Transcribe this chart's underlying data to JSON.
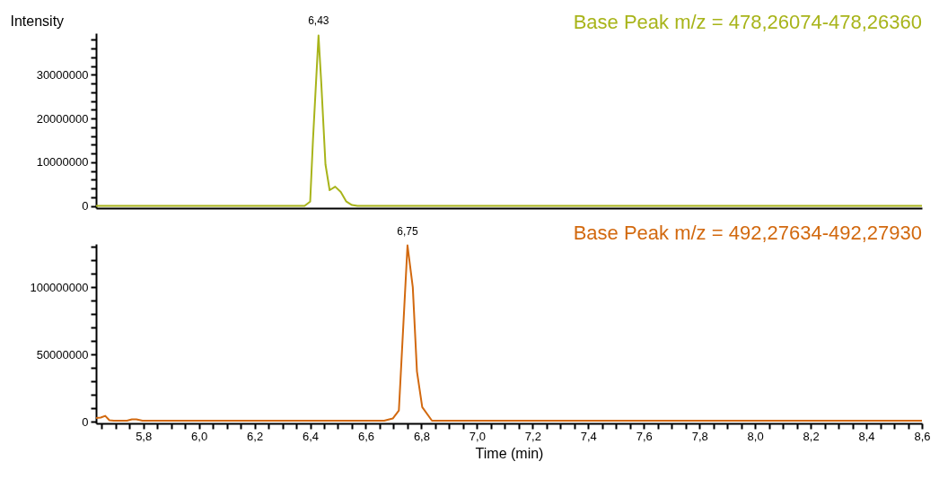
{
  "chart_data": [
    {
      "type": "line",
      "ylabel": "Intensity",
      "xlim": [
        5.63,
        8.6
      ],
      "ylim": [
        -500000,
        39500000
      ],
      "tick_labels": "y",
      "yticks": [
        0,
        {
          "value": 2000000,
          "label": null
        },
        {
          "value": 4000000,
          "label": null
        },
        {
          "value": 6000000,
          "label": null
        },
        {
          "value": 8000000,
          "label": null
        },
        10000000,
        {
          "value": 12000000,
          "label": null
        },
        {
          "value": 14000000,
          "label": null
        },
        {
          "value": 16000000,
          "label": null
        },
        {
          "value": 18000000,
          "label": null
        },
        20000000,
        {
          "value": 22000000,
          "label": null
        },
        {
          "value": 24000000,
          "label": null
        },
        {
          "value": 26000000,
          "label": null
        },
        {
          "value": 28000000,
          "label": null
        },
        30000000,
        {
          "value": 32000000,
          "label": null
        },
        {
          "value": 34000000,
          "label": null
        },
        {
          "value": 36000000,
          "label": null
        },
        {
          "value": 38000000,
          "label": null
        }
      ],
      "series": [
        {
          "name": "Base Peak m/z = 478,26074-478,26360",
          "color": "#a8b41a",
          "x": [
            5.63,
            6.38,
            6.4,
            6.41,
            6.43,
            6.44,
            6.455,
            6.47,
            6.49,
            6.51,
            6.53,
            6.55,
            6.57,
            8.6
          ],
          "values": [
            0,
            0,
            1000000,
            15000000,
            39000000,
            28000000,
            9500000,
            3600000,
            4400000,
            3200000,
            1000000,
            200000,
            0,
            0
          ]
        }
      ],
      "annotations": [
        {
          "text": "6,43",
          "x": 6.43,
          "y": 39000000
        }
      ]
    },
    {
      "type": "line",
      "xlabel": "Time (min)",
      "xlim": [
        5.63,
        8.6
      ],
      "ylim": [
        -1000000,
        132000000
      ],
      "xticks": [
        {
          "value": 5.65,
          "label": null
        },
        {
          "value": 5.7,
          "label": null
        },
        {
          "value": 5.75,
          "label": null
        },
        {
          "value": 5.8,
          "label": "5,8"
        },
        {
          "value": 5.85,
          "label": null
        },
        {
          "value": 5.9,
          "label": null
        },
        {
          "value": 5.95,
          "label": null
        },
        {
          "value": 6.0,
          "label": "6,0"
        },
        {
          "value": 6.05,
          "label": null
        },
        {
          "value": 6.1,
          "label": null
        },
        {
          "value": 6.15,
          "label": null
        },
        {
          "value": 6.2,
          "label": "6,2"
        },
        {
          "value": 6.25,
          "label": null
        },
        {
          "value": 6.3,
          "label": null
        },
        {
          "value": 6.35,
          "label": null
        },
        {
          "value": 6.4,
          "label": "6,4"
        },
        {
          "value": 6.45,
          "label": null
        },
        {
          "value": 6.5,
          "label": null
        },
        {
          "value": 6.55,
          "label": null
        },
        {
          "value": 6.6,
          "label": "6,6"
        },
        {
          "value": 6.65,
          "label": null
        },
        {
          "value": 6.7,
          "label": null
        },
        {
          "value": 6.75,
          "label": null
        },
        {
          "value": 6.8,
          "label": "6,8"
        },
        {
          "value": 6.85,
          "label": null
        },
        {
          "value": 6.9,
          "label": null
        },
        {
          "value": 6.95,
          "label": null
        },
        {
          "value": 7.0,
          "label": "7,0"
        },
        {
          "value": 7.05,
          "label": null
        },
        {
          "value": 7.1,
          "label": null
        },
        {
          "value": 7.15,
          "label": null
        },
        {
          "value": 7.2,
          "label": "7,2"
        },
        {
          "value": 7.25,
          "label": null
        },
        {
          "value": 7.3,
          "label": null
        },
        {
          "value": 7.35,
          "label": null
        },
        {
          "value": 7.4,
          "label": "7,4"
        },
        {
          "value": 7.45,
          "label": null
        },
        {
          "value": 7.5,
          "label": null
        },
        {
          "value": 7.55,
          "label": null
        },
        {
          "value": 7.6,
          "label": "7,6"
        },
        {
          "value": 7.65,
          "label": null
        },
        {
          "value": 7.7,
          "label": null
        },
        {
          "value": 7.75,
          "label": null
        },
        {
          "value": 7.8,
          "label": "7,8"
        },
        {
          "value": 7.85,
          "label": null
        },
        {
          "value": 7.9,
          "label": null
        },
        {
          "value": 7.95,
          "label": null
        },
        {
          "value": 8.0,
          "label": "8,0"
        },
        {
          "value": 8.05,
          "label": null
        },
        {
          "value": 8.1,
          "label": null
        },
        {
          "value": 8.15,
          "label": null
        },
        {
          "value": 8.2,
          "label": "8,2"
        },
        {
          "value": 8.25,
          "label": null
        },
        {
          "value": 8.3,
          "label": null
        },
        {
          "value": 8.35,
          "label": null
        },
        {
          "value": 8.4,
          "label": "8,4"
        },
        {
          "value": 8.45,
          "label": null
        },
        {
          "value": 8.5,
          "label": null
        },
        {
          "value": 8.55,
          "label": null
        },
        {
          "value": 8.6,
          "label": "8,6"
        }
      ],
      "yticks": [
        0,
        {
          "value": 10000000,
          "label": null
        },
        {
          "value": 20000000,
          "label": null
        },
        {
          "value": 30000000,
          "label": null
        },
        {
          "value": 40000000,
          "label": null
        },
        50000000,
        {
          "value": 60000000,
          "label": null
        },
        {
          "value": 70000000,
          "label": null
        },
        {
          "value": 80000000,
          "label": null
        },
        {
          "value": 90000000,
          "label": null
        },
        100000000,
        {
          "value": 110000000,
          "label": null
        },
        {
          "value": 120000000,
          "label": null
        },
        {
          "value": 130000000,
          "label": null
        }
      ],
      "series": [
        {
          "name": "Base Peak m/z = 492,27634-492,27930",
          "color": "#d2690f",
          "x": [
            5.63,
            5.647,
            5.663,
            5.678,
            5.694,
            5.741,
            5.759,
            5.775,
            5.797,
            6.666,
            6.697,
            6.719,
            6.75,
            6.769,
            6.784,
            6.803,
            6.838,
            8.6
          ],
          "values": [
            3000000,
            3300000,
            4600000,
            1300000,
            1000000,
            1000000,
            2000000,
            2000000,
            1000000,
            1000000,
            2600000,
            8600000,
            131000000,
            100000000,
            37500000,
            11000000,
            1000000,
            1000000
          ]
        }
      ],
      "annotations": [
        {
          "text": "6,75",
          "x": 6.75,
          "y": 131000000
        }
      ]
    }
  ]
}
